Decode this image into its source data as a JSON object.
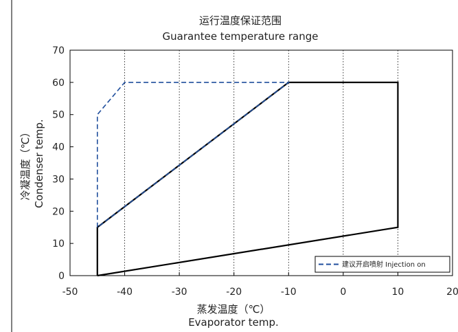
{
  "chart_data": {
    "type": "line",
    "title": "运行温度保证范围",
    "subtitle": "Guarantee temperature range",
    "xlabel": "蒸发温度（℃）",
    "xlabel_en": "Evaporator temp.",
    "ylabel": "冷凝温度（℃）",
    "ylabel_en": "Condenser temp.",
    "xlim": [
      -50,
      20
    ],
    "ylim": [
      0,
      70
    ],
    "xticks": [
      -50,
      -40,
      -30,
      -20,
      -10,
      0,
      10,
      20
    ],
    "yticks": [
      0,
      10,
      20,
      30,
      40,
      50,
      60,
      70
    ],
    "x_gridlines": [
      -40,
      -30,
      -20,
      -10,
      0,
      10
    ],
    "grid": "vertical dotted",
    "legend_position": "bottom-right",
    "series": [
      {
        "style": "solid",
        "color": "#000000",
        "points": [
          [
            -45,
            0
          ],
          [
            10,
            15
          ],
          [
            10,
            60
          ],
          [
            -10,
            60
          ],
          [
            -45,
            15
          ],
          [
            -45,
            0
          ]
        ]
      },
      {
        "name": "建议开启喷射 Injection on",
        "style": "dashed",
        "color": "#1f4e9c",
        "points": [
          [
            -45,
            15
          ],
          [
            -45,
            50
          ],
          [
            -40,
            60
          ],
          [
            -10,
            60
          ],
          [
            -45,
            15
          ]
        ]
      }
    ]
  }
}
